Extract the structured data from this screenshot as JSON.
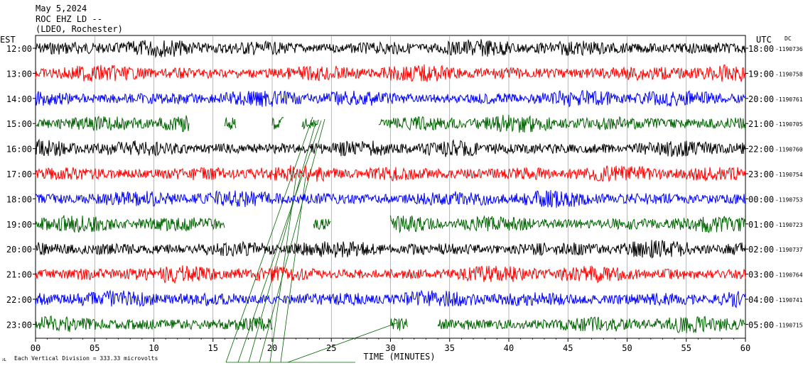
{
  "header": {
    "date": "May 5,2024",
    "station": "ROC EHZ LD --",
    "network": "(LDEO, Rochester)"
  },
  "left_axis_label": "EST",
  "right_axis_label": "UTC",
  "dc_label": "DC",
  "x_axis_title": "TIME (MINUTES)",
  "footer_note": "Each Vertical Division =  333.33 microvolts",
  "chart_data": {
    "type": "line",
    "xlim": [
      0,
      60
    ],
    "x_ticks": [
      "00",
      "05",
      "10",
      "15",
      "20",
      "25",
      "30",
      "35",
      "40",
      "45",
      "50",
      "55",
      "60"
    ],
    "x_tick_values": [
      0,
      5,
      10,
      15,
      20,
      25,
      30,
      35,
      40,
      45,
      50,
      55,
      60
    ],
    "rows": [
      {
        "est": "12:00",
        "utc": "18:00",
        "dc": "-1190736",
        "color": "#000000",
        "segments": [
          [
            0,
            60
          ]
        ]
      },
      {
        "est": "13:00",
        "utc": "19:00",
        "dc": "-1190758",
        "color": "#ff0000",
        "segments": [
          [
            0,
            60
          ]
        ]
      },
      {
        "est": "14:00",
        "utc": "20:00",
        "dc": "-1190761",
        "color": "#0000ff",
        "segments": [
          [
            0,
            60
          ]
        ]
      },
      {
        "est": "15:00",
        "utc": "21:00",
        "dc": "-1190705",
        "color": "#006400",
        "segments": [
          [
            0,
            13
          ],
          [
            16,
            17
          ],
          [
            20,
            21
          ],
          [
            22.5,
            24
          ],
          [
            29,
            60
          ]
        ]
      },
      {
        "est": "16:00",
        "utc": "22:00",
        "dc": "-1190760",
        "color": "#000000",
        "segments": [
          [
            0,
            60
          ]
        ]
      },
      {
        "est": "17:00",
        "utc": "23:00",
        "dc": "-1190754",
        "color": "#ff0000",
        "segments": [
          [
            0,
            60
          ]
        ]
      },
      {
        "est": "18:00",
        "utc": "00:00",
        "dc": "-1190753",
        "color": "#0000ff",
        "segments": [
          [
            0,
            60
          ]
        ]
      },
      {
        "est": "19:00",
        "utc": "01:00",
        "dc": "-1190723",
        "color": "#006400",
        "segments": [
          [
            0,
            16
          ],
          [
            23.5,
            25
          ],
          [
            30,
            60
          ]
        ]
      },
      {
        "est": "20:00",
        "utc": "02:00",
        "dc": "-1190737",
        "color": "#000000",
        "segments": [
          [
            0,
            60
          ]
        ]
      },
      {
        "est": "21:00",
        "utc": "03:00",
        "dc": "-1190764",
        "color": "#ff0000",
        "segments": [
          [
            0,
            60
          ]
        ]
      },
      {
        "est": "22:00",
        "utc": "04:00",
        "dc": "-1190741",
        "color": "#0000ff",
        "segments": [
          [
            0,
            60
          ]
        ]
      },
      {
        "est": "23:00",
        "utc": "05:00",
        "dc": "-1190715",
        "color": "#006400",
        "segments": [
          [
            0,
            20
          ],
          [
            30,
            31.5
          ],
          [
            34,
            60
          ]
        ]
      }
    ]
  }
}
